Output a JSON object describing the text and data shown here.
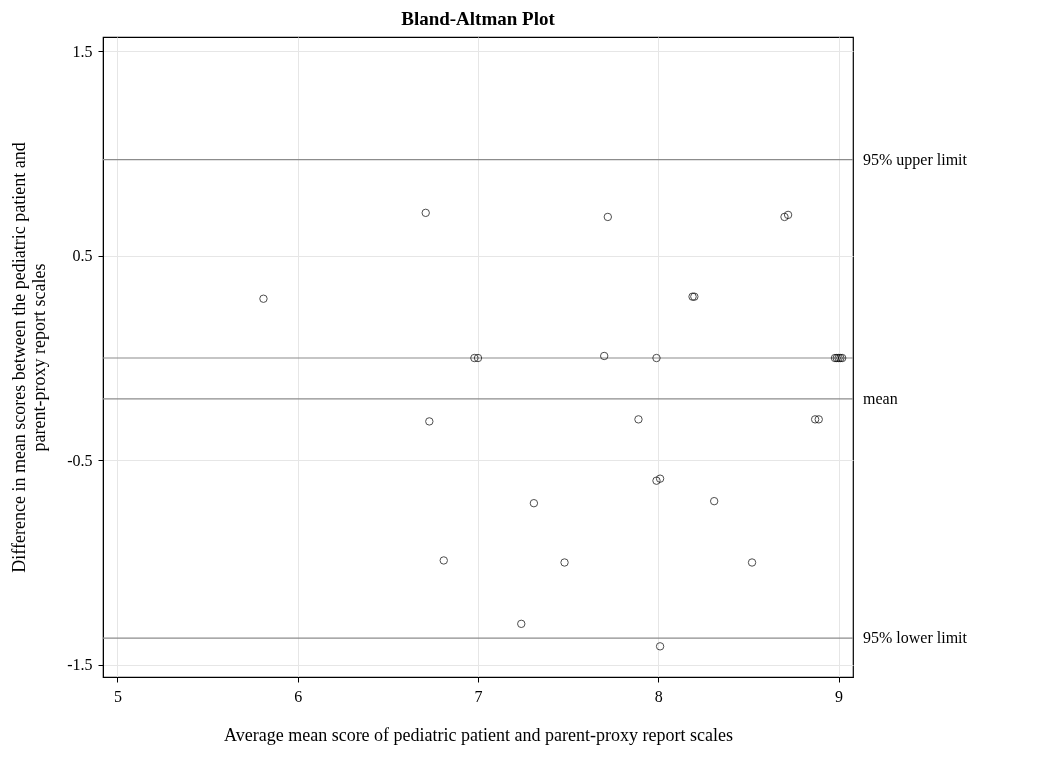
{
  "chart_data": {
    "type": "scatter",
    "title": "Bland-Altman Plot",
    "xlabel": "Average mean score of pediatric patient and parent-proxy report scales",
    "ylabel": "Difference in mean scores between the pediatric patient and\nparent-proxy report scales",
    "x": [
      5.81,
      6.71,
      7.72,
      8.7,
      8.72,
      8.19,
      8.2,
      6.98,
      7.0,
      7.7,
      7.99,
      8.98,
      8.99,
      9.0,
      9.01,
      9.02,
      6.73,
      7.89,
      7.99,
      8.01,
      7.31,
      8.31,
      6.81,
      7.48,
      8.52,
      7.24,
      8.01,
      8.87,
      8.89
    ],
    "series": [
      {
        "color": "#000000",
        "values": [
          0.29,
          0.71,
          0.69,
          0.69,
          0.7,
          0.3,
          0.3,
          0,
          0,
          0.01,
          0,
          0,
          0,
          0,
          0,
          0,
          -0.31,
          -0.3,
          -0.6,
          -0.59,
          -0.71,
          -0.7,
          -0.99,
          -1.0,
          -1.0,
          -1.3,
          -1.41,
          -0.3,
          -0.3
        ]
      }
    ],
    "marker": "circle",
    "xlim": [
      4.92,
      9.08
    ],
    "ylim": [
      -1.56,
      1.57
    ],
    "xticks": [
      5,
      6,
      7,
      8,
      9
    ],
    "yticks": [
      -1.5,
      -0.5,
      0.5,
      1.5
    ],
    "grid": true,
    "ref_lines": [
      {
        "axis": "y",
        "value": 0.97,
        "label": "95% upper limit",
        "color": "#8c8c8c"
      },
      {
        "axis": "y",
        "value": 0,
        "color": "#8c8c8c"
      },
      {
        "axis": "y",
        "value": -0.2,
        "label": "mean",
        "color": "#8c8c8c"
      },
      {
        "axis": "y",
        "value": -1.37,
        "label": "95% lower limit",
        "color": "#8c8c8c"
      }
    ]
  }
}
